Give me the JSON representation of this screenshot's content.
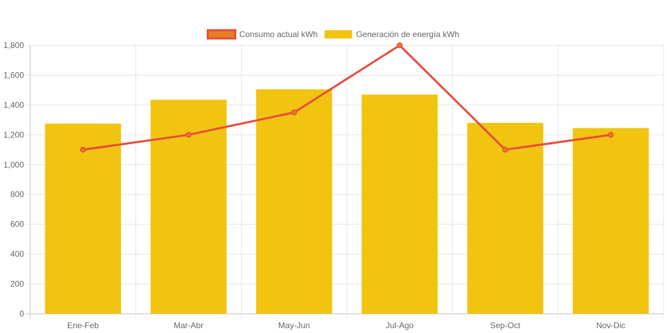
{
  "chart_data": {
    "type": "bar",
    "categories": [
      "Ene-Feb",
      "Mar-Abr",
      "May-Jun",
      "Jul-Ago",
      "Sep-Oct",
      "Nov-Dic"
    ],
    "series": [
      {
        "name": "Consumo actual kWh",
        "type": "line",
        "values": [
          1100,
          1200,
          1350,
          1800,
          1100,
          1200
        ],
        "color": "#e74c3c",
        "legend_fill": "#e67e22"
      },
      {
        "name": "Generación de energía kWh",
        "type": "bar",
        "values": [
          1275,
          1435,
          1505,
          1470,
          1280,
          1245
        ],
        "color": "#f1c40f"
      }
    ],
    "ylim": [
      0,
      1800
    ],
    "yticks": [
      "0",
      "200",
      "400",
      "600",
      "800",
      "1,000",
      "1,200",
      "1,400",
      "1,600",
      "1,800"
    ],
    "grid": true,
    "legend_position": "top-center"
  }
}
